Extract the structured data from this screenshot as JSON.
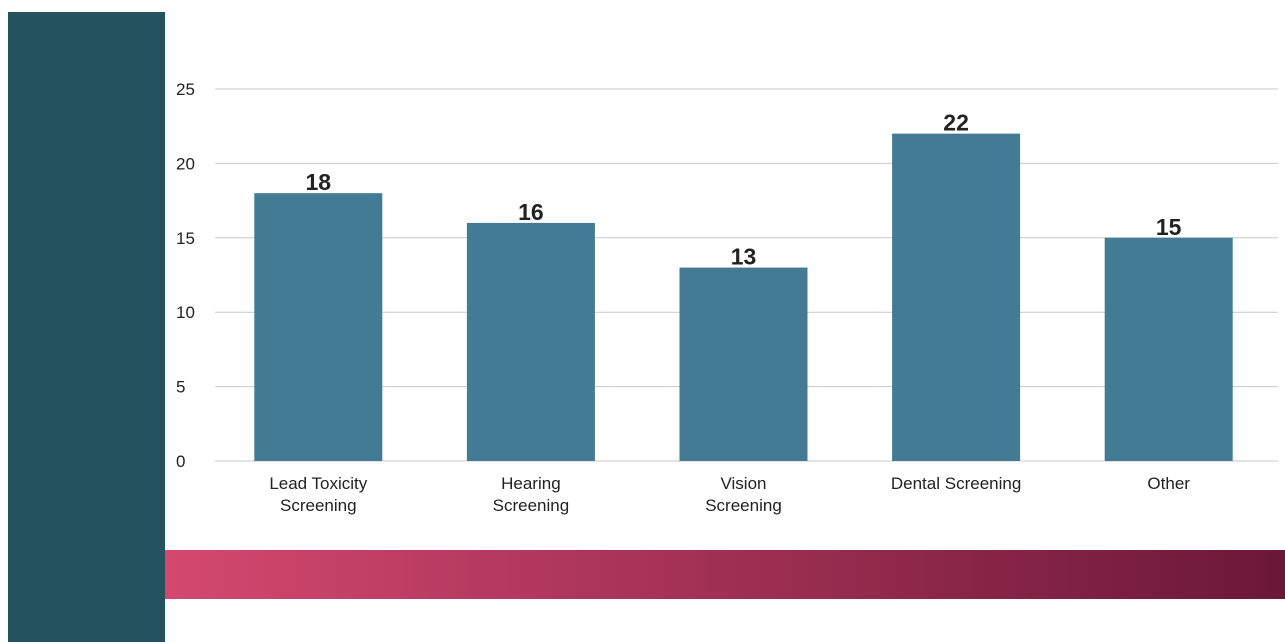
{
  "colors": {
    "sidebar": "#24535e",
    "bar": "#437b95",
    "gridline": "#c8c8c8",
    "band_start": "#d4486f",
    "band_end": "#6b1838"
  },
  "chart_data": {
    "type": "bar",
    "title": "",
    "xlabel": "",
    "ylabel": "",
    "categories": [
      [
        "Lead Toxicity",
        "Screening"
      ],
      [
        "Hearing",
        "Screening"
      ],
      [
        "Vision",
        "Screening"
      ],
      [
        "Dental Screening"
      ],
      [
        "Other"
      ]
    ],
    "values": [
      18,
      16,
      13,
      22,
      15
    ],
    "value_labels": [
      "18",
      "16",
      "13",
      "22",
      "15"
    ],
    "yticks": [
      0,
      5,
      10,
      15,
      20,
      25
    ],
    "ytick_labels": [
      "0",
      "5",
      "10",
      "15",
      "20",
      "25"
    ],
    "ylim": [
      0,
      25
    ],
    "grid": true,
    "legend": "none"
  }
}
